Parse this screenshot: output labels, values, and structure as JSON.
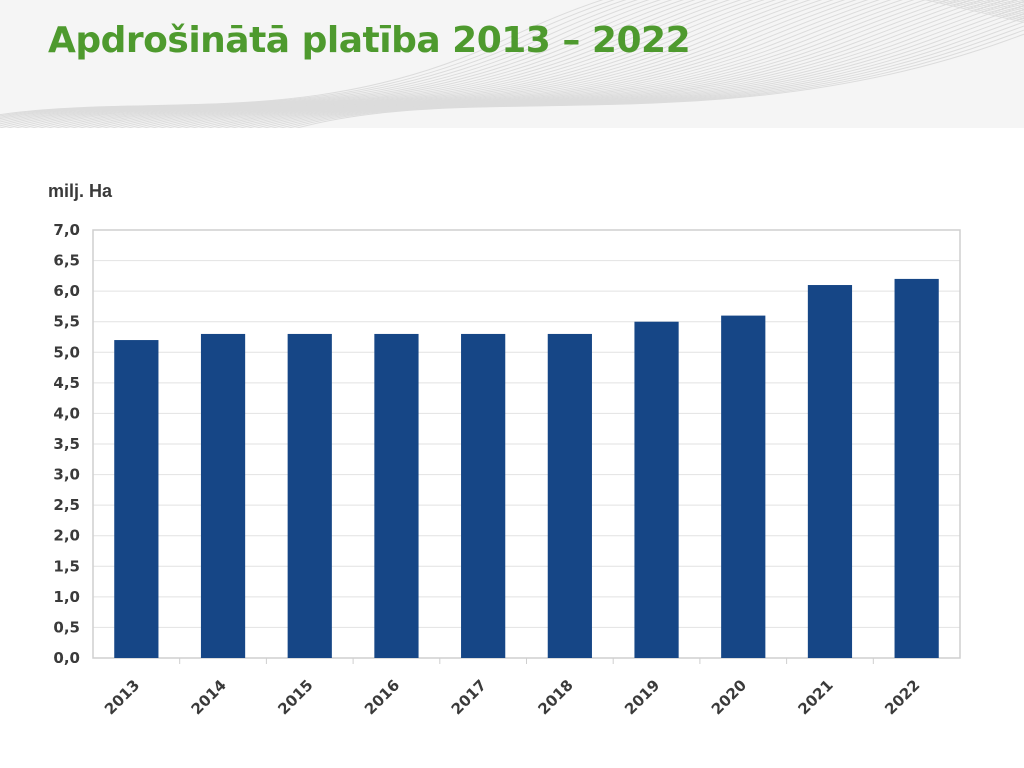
{
  "title": "Apdrošinātā platība 2013 – 2022",
  "colors": {
    "title": "#4e9a2e",
    "bar": "#164686",
    "header_bg": "#f5f5f5"
  },
  "chart_data": {
    "type": "bar",
    "title": "Apdrošinātā platība 2013 – 2022",
    "ylabel": "milj. Ha",
    "xlabel": "",
    "categories": [
      "2013",
      "2014",
      "2015",
      "2016",
      "2017",
      "2018",
      "2019",
      "2020",
      "2021",
      "2022"
    ],
    "values": [
      5.2,
      5.3,
      5.3,
      5.3,
      5.3,
      5.3,
      5.5,
      5.6,
      6.1,
      6.2
    ],
    "ylim": [
      0,
      7
    ],
    "yticks": [
      "0,0",
      "0,5",
      "1,0",
      "1,5",
      "2,0",
      "2,5",
      "3,0",
      "3,5",
      "4,0",
      "4,5",
      "5,0",
      "5,5",
      "6,0",
      "6,5",
      "7,0"
    ],
    "grid": true,
    "legend": "none"
  }
}
